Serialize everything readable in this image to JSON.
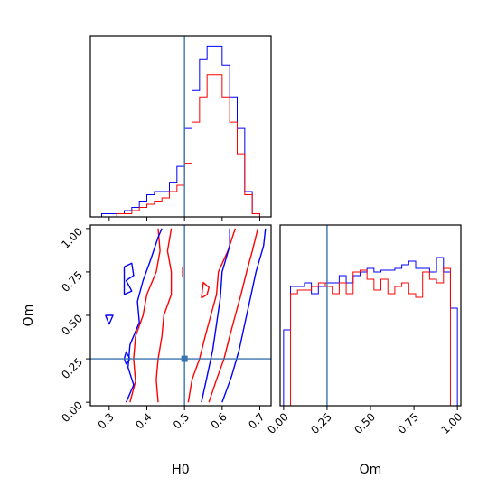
{
  "chart_data": [
    {
      "type": "step-histogram",
      "panel": "H0 marginal",
      "x_param": "H0",
      "xlim": [
        0.25,
        0.73
      ],
      "bin_edges": [
        0.26,
        0.28,
        0.3,
        0.32,
        0.34,
        0.36,
        0.38,
        0.4,
        0.42,
        0.44,
        0.46,
        0.48,
        0.5,
        0.52,
        0.54,
        0.56,
        0.58,
        0.6,
        0.62,
        0.64,
        0.66,
        0.68,
        0.7,
        0.72
      ],
      "series": [
        {
          "color": "#0000ff",
          "counts": [
            0,
            1,
            1,
            1,
            2,
            3,
            5,
            7,
            8,
            8,
            11,
            16,
            28,
            40,
            50,
            54,
            54,
            48,
            38,
            28,
            8,
            1,
            0
          ]
        },
        {
          "color": "#ff0000",
          "counts": [
            0,
            0,
            0,
            1,
            1,
            2,
            3,
            4,
            5,
            6,
            8,
            10,
            17,
            30,
            38,
            45,
            45,
            38,
            30,
            20,
            7,
            1,
            0
          ]
        }
      ],
      "truth": {
        "color": "#3b75af",
        "value": 0.5
      }
    },
    {
      "type": "step-histogram",
      "panel": "Om marginal",
      "x_param": "Om",
      "xlabel": "Om",
      "xlim": [
        -0.02,
        1.02
      ],
      "xticks": [
        "0.00",
        "0.25",
        "0.50",
        "0.75",
        "1.00"
      ],
      "bin_edges": [
        0.0,
        0.04,
        0.08,
        0.12,
        0.16,
        0.2,
        0.24,
        0.28,
        0.32,
        0.36,
        0.4,
        0.44,
        0.48,
        0.52,
        0.56,
        0.6,
        0.64,
        0.68,
        0.72,
        0.76,
        0.8,
        0.84,
        0.88,
        0.92,
        0.96,
        1.0
      ],
      "series": [
        {
          "color": "#0000ff",
          "counts": [
            42,
            66,
            66,
            68,
            62,
            66,
            68,
            68,
            72,
            68,
            72,
            74,
            76,
            74,
            75,
            75,
            76,
            78,
            80,
            76,
            76,
            74,
            82,
            74,
            54
          ]
        },
        {
          "color": "#ff0000",
          "counts": [
            0,
            62,
            64,
            64,
            66,
            68,
            66,
            62,
            68,
            62,
            74,
            75,
            70,
            64,
            70,
            62,
            66,
            68,
            62,
            60,
            74,
            70,
            68,
            76,
            0
          ]
        }
      ],
      "truth": {
        "color": "#3b75af",
        "value": 0.25
      }
    },
    {
      "type": "contour",
      "panel": "H0 vs Om",
      "xlabel": "H0",
      "ylabel": "Om",
      "xlim": [
        0.25,
        0.73
      ],
      "ylim": [
        -0.02,
        1.02
      ],
      "xticks": [
        "0.3",
        "0.4",
        "0.5",
        "0.6",
        "0.7"
      ],
      "yticks": [
        "0.00",
        "0.25",
        "0.50",
        "0.75",
        "1.00"
      ],
      "contours": [
        {
          "color": "#ff0000",
          "points": [
            [
              0.355,
              0.0
            ],
            [
              0.37,
              0.12
            ],
            [
              0.365,
              0.25
            ],
            [
              0.37,
              0.38
            ],
            [
              0.39,
              0.5
            ],
            [
              0.4,
              0.62
            ],
            [
              0.425,
              0.75
            ],
            [
              0.435,
              0.87
            ],
            [
              0.43,
              1.0
            ]
          ]
        },
        {
          "color": "#ff0000",
          "points": [
            [
              0.43,
              0.0
            ],
            [
              0.425,
              0.13
            ],
            [
              0.43,
              0.25
            ],
            [
              0.44,
              0.38
            ],
            [
              0.445,
              0.5
            ],
            [
              0.465,
              0.62
            ],
            [
              0.465,
              0.75
            ],
            [
              0.455,
              0.87
            ],
            [
              0.465,
              1.0
            ]
          ]
        },
        {
          "color": "#ff0000",
          "points": [
            [
              0.51,
              0.0
            ],
            [
              0.52,
              0.13
            ],
            [
              0.54,
              0.25
            ],
            [
              0.555,
              0.38
            ],
            [
              0.57,
              0.5
            ],
            [
              0.585,
              0.62
            ],
            [
              0.59,
              0.75
            ],
            [
              0.615,
              0.87
            ],
            [
              0.635,
              1.0
            ]
          ]
        },
        {
          "color": "#ff0000",
          "points": [
            [
              0.565,
              0.0
            ],
            [
              0.585,
              0.13
            ],
            [
              0.605,
              0.25
            ],
            [
              0.62,
              0.38
            ],
            [
              0.635,
              0.5
            ],
            [
              0.65,
              0.62
            ],
            [
              0.665,
              0.75
            ],
            [
              0.68,
              0.87
            ],
            [
              0.695,
              1.0
            ]
          ]
        },
        {
          "color": "#ff0000",
          "points": [
            [
              0.545,
              0.6
            ],
            [
              0.56,
              0.62
            ],
            [
              0.565,
              0.66
            ],
            [
              0.55,
              0.69
            ],
            [
              0.545,
              0.6
            ]
          ]
        },
        {
          "color": "#ff0000",
          "points": [
            [
              0.495,
              0.72
            ],
            [
              0.495,
              0.78
            ]
          ]
        },
        {
          "color": "#0000ff",
          "points": [
            [
              0.345,
              0.0
            ],
            [
              0.365,
              0.1
            ],
            [
              0.35,
              0.2
            ],
            [
              0.355,
              0.33
            ],
            [
              0.38,
              0.46
            ],
            [
              0.375,
              0.58
            ],
            [
              0.39,
              0.7
            ],
            [
              0.41,
              0.82
            ],
            [
              0.43,
              0.95
            ],
            [
              0.44,
              1.0
            ]
          ]
        },
        {
          "color": "#0000ff",
          "points": [
            [
              0.545,
              0.0
            ],
            [
              0.56,
              0.15
            ],
            [
              0.575,
              0.3
            ],
            [
              0.585,
              0.45
            ],
            [
              0.595,
              0.6
            ],
            [
              0.6,
              0.75
            ],
            [
              0.62,
              0.9
            ],
            [
              0.62,
              1.0
            ]
          ]
        },
        {
          "color": "#0000ff",
          "points": [
            [
              0.6,
              0.0
            ],
            [
              0.625,
              0.15
            ],
            [
              0.645,
              0.3
            ],
            [
              0.66,
              0.45
            ],
            [
              0.675,
              0.6
            ],
            [
              0.69,
              0.75
            ],
            [
              0.71,
              0.9
            ],
            [
              0.715,
              1.0
            ]
          ]
        },
        {
          "color": "#0000ff",
          "points": [
            [
              0.34,
              0.78
            ],
            [
              0.36,
              0.8
            ],
            [
              0.365,
              0.73
            ],
            [
              0.345,
              0.7
            ],
            [
              0.36,
              0.64
            ],
            [
              0.34,
              0.62
            ],
            [
              0.34,
              0.78
            ]
          ]
        },
        {
          "color": "#0000ff",
          "points": [
            [
              0.29,
              0.5
            ],
            [
              0.31,
              0.5
            ],
            [
              0.3,
              0.45
            ],
            [
              0.29,
              0.5
            ]
          ]
        },
        {
          "color": "#0000ff",
          "points": [
            [
              0.34,
              0.25
            ],
            [
              0.345,
              0.29
            ],
            [
              0.355,
              0.25
            ],
            [
              0.345,
              0.22
            ],
            [
              0.34,
              0.25
            ]
          ]
        }
      ],
      "truth": {
        "color": "#3b75af",
        "x": 0.5,
        "y": 0.25
      }
    }
  ]
}
